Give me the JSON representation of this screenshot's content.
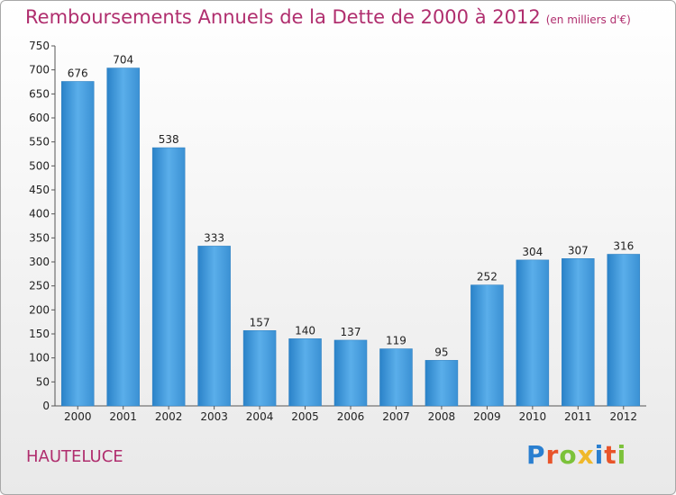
{
  "chart_data": {
    "type": "bar",
    "title": "Remboursements Annuels de la Dette de 2000 à 2012",
    "subtitle": "(en milliers d'€)",
    "xlabel": "",
    "ylabel": "",
    "categories": [
      "2000",
      "2001",
      "2002",
      "2003",
      "2004",
      "2005",
      "2006",
      "2007",
      "2008",
      "2009",
      "2010",
      "2011",
      "2012"
    ],
    "values": [
      676,
      704,
      538,
      333,
      157,
      140,
      137,
      119,
      95,
      252,
      304,
      307,
      316
    ],
    "ylim": [
      0,
      750
    ],
    "yticks": [
      0,
      50,
      100,
      150,
      200,
      250,
      300,
      350,
      400,
      450,
      500,
      550,
      600,
      650,
      700,
      750
    ],
    "grid": false,
    "bar_color": "#3a93d6"
  },
  "footer": {
    "commune": "HAUTELUCE",
    "logo_letters": [
      {
        "ch": "P",
        "color": "#2a7fd0"
      },
      {
        "ch": "r",
        "color": "#e8542a"
      },
      {
        "ch": "o",
        "color": "#7cc23a"
      },
      {
        "ch": "x",
        "color": "#f0b82a"
      },
      {
        "ch": "i",
        "color": "#2a7fd0"
      },
      {
        "ch": "t",
        "color": "#e8542a"
      },
      {
        "ch": "i",
        "color": "#7cc23a"
      }
    ]
  }
}
